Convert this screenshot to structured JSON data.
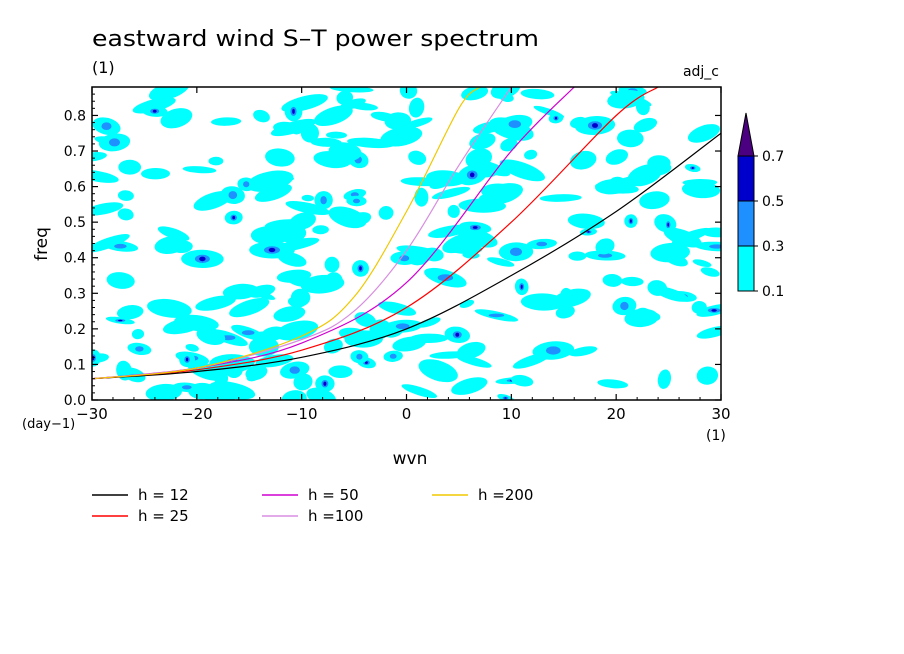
{
  "chart_data": {
    "type": "heatmap",
    "title": "eastward wind S–T power spectrum",
    "units_label": "(1)",
    "subtitle_right": "adj_c",
    "xlabel": "wvn",
    "ylabel": "freq",
    "x_units": "(1)",
    "y_units": "(day−1)",
    "xlim": [
      -30,
      30
    ],
    "ylim": [
      0,
      0.88
    ],
    "x_ticks": [
      -30,
      -20,
      -10,
      0,
      10,
      20,
      30
    ],
    "x_tick_labels": [
      "−30",
      "−20",
      "−10",
      "0",
      "10",
      "20",
      "30"
    ],
    "y_ticks": [
      0,
      0.1,
      0.2,
      0.3,
      0.4,
      0.5,
      0.6,
      0.7,
      0.8
    ],
    "y_tick_labels": [
      "0.0",
      "0.1",
      "0.2",
      "0.3",
      "0.4",
      "0.5",
      "0.6",
      "0.7",
      "0.8"
    ],
    "colorbar": {
      "levels": [
        0.1,
        0.3,
        0.5,
        0.7
      ],
      "labels": [
        "0.1",
        "0.3",
        "0.5",
        "0.7"
      ],
      "colors": [
        "#00ffff",
        "#1e90ff",
        "#0000cd",
        "#4b0082"
      ],
      "extend": "max"
    },
    "dispersion_curves": [
      {
        "name": "h = 12",
        "h": 12,
        "color": "#000000"
      },
      {
        "name": "h = 25",
        "h": 25,
        "color": "#ff0000"
      },
      {
        "name": "h = 50",
        "h": 50,
        "color": "#d000d0"
      },
      {
        "name": "h =100",
        "h": 100,
        "color": "#d88ee0"
      },
      {
        "name": "h =200",
        "h": 200,
        "color": "#f0c800"
      }
    ],
    "dispersion_curve_values": [
      {
        "name": "h = 12",
        "x": [
          -30,
          -20,
          -10,
          0,
          10,
          20,
          30
        ],
        "y": [
          0.06,
          0.08,
          0.12,
          0.2,
          0.35,
          0.53,
          0.75
        ]
      },
      {
        "name": "h = 25",
        "x": [
          -30,
          -20,
          -10,
          0,
          10,
          20,
          24
        ],
        "y": [
          0.06,
          0.085,
          0.14,
          0.26,
          0.5,
          0.8,
          0.88
        ]
      },
      {
        "name": "h = 50",
        "x": [
          -30,
          -20,
          -10,
          0,
          10,
          16
        ],
        "y": [
          0.06,
          0.09,
          0.16,
          0.33,
          0.7,
          0.88
        ]
      },
      {
        "name": "h =100",
        "x": [
          -30,
          -20,
          -10,
          -5,
          0,
          5,
          10
        ],
        "y": [
          0.06,
          0.09,
          0.17,
          0.25,
          0.42,
          0.66,
          0.88
        ]
      },
      {
        "name": "h =200",
        "x": [
          -30,
          -20,
          -10,
          -5,
          0,
          5,
          7
        ],
        "y": [
          0.06,
          0.09,
          0.18,
          0.29,
          0.53,
          0.82,
          0.88
        ]
      }
    ],
    "grid": false,
    "legend_position": "bottom"
  }
}
